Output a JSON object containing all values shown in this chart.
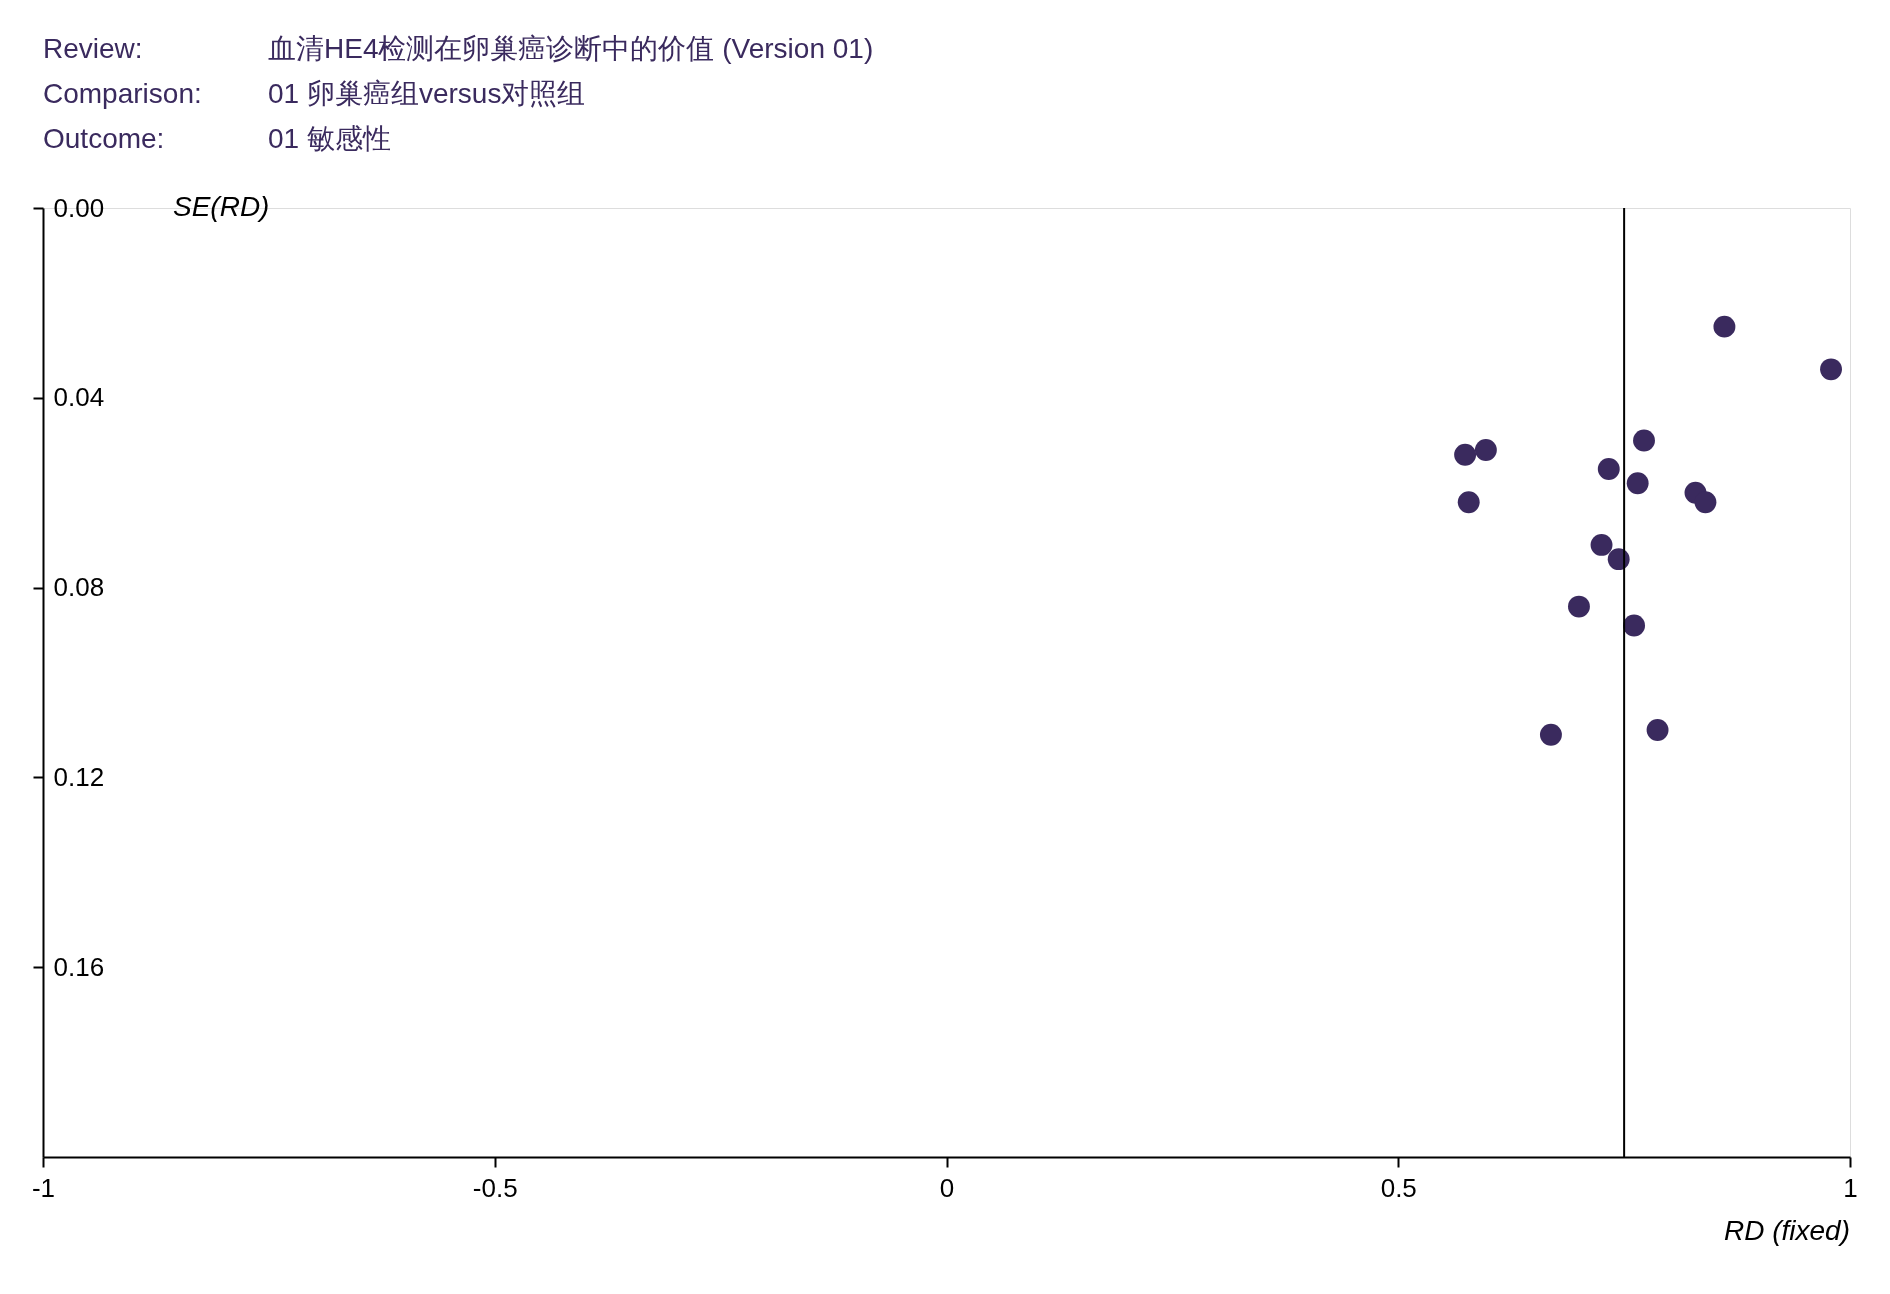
{
  "chart_data": {
    "type": "scatter",
    "marker": "circle",
    "grid": false,
    "annotations": [
      "Review:",
      "血清HE4检测在卵巢癌诊断中的价值 (Version 01)",
      "Comparison:",
      "01 卵巢癌组versus对照组",
      "Outcome:",
      "01 敏感性"
    ],
    "xlabel": "RD (fixed)",
    "ylabel": "SE(RD)",
    "xlim": [
      -1,
      1
    ],
    "xticks": [
      -1,
      -0.5,
      0,
      0.5,
      1
    ],
    "ylim": [
      0.2,
      0
    ],
    "yticks": [
      {
        "value": 0,
        "label": "0.00"
      },
      0.04,
      0.08,
      0.12,
      0.16
    ],
    "ref_lines": [
      {
        "axis": "x",
        "value": 0.75,
        "color": "#000000"
      }
    ],
    "series": [
      {
        "color": "#3a2a5e",
        "x": [
          0.861,
          0.979,
          0.772,
          0.597,
          0.574,
          0.733,
          0.765,
          0.829,
          0.84,
          0.578,
          0.725,
          0.744,
          0.7,
          0.761,
          0.787,
          0.669
        ],
        "values": [
          0.025,
          0.034,
          0.049,
          0.051,
          0.052,
          0.055,
          0.058,
          0.06,
          0.062,
          0.062,
          0.071,
          0.074,
          0.084,
          0.088,
          0.11,
          0.111
        ]
      }
    ]
  }
}
